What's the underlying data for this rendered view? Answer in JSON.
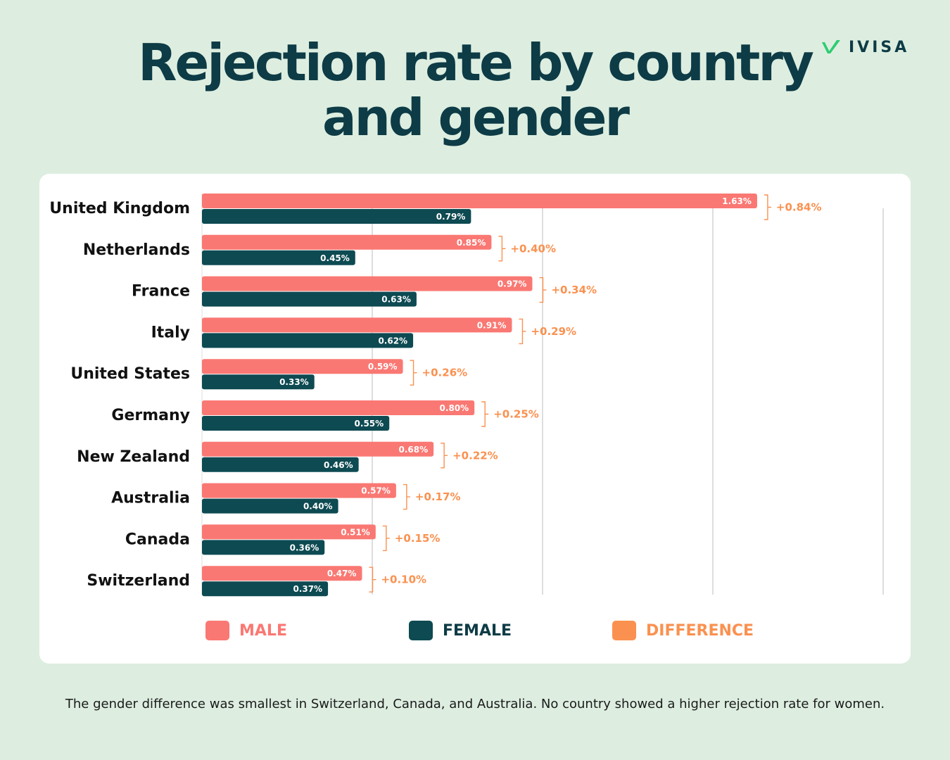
{
  "title": "Rejection rate by country and gender",
  "brand": {
    "name": "IVISA",
    "icon": "check-mark-icon",
    "icon_color": "#2ecc71"
  },
  "colors": {
    "male": "#fa7873",
    "female": "#0d4a52",
    "difference": "#fa9150",
    "grid": "#c8c8c8",
    "text": "#0d3b46"
  },
  "legend": [
    {
      "key": "male",
      "label": "MALE"
    },
    {
      "key": "female",
      "label": "FEMALE"
    },
    {
      "key": "difference",
      "label": "DIFFERENCE"
    }
  ],
  "chart_data": {
    "type": "bar",
    "orientation": "horizontal",
    "categories": [
      "United Kingdom",
      "Netherlands",
      "France",
      "Italy",
      "United States",
      "Germany",
      "New Zealand",
      "Australia",
      "Canada",
      "Switzerland"
    ],
    "series": [
      {
        "name": "MALE",
        "values": [
          1.63,
          0.85,
          0.97,
          0.91,
          0.59,
          0.8,
          0.68,
          0.57,
          0.51,
          0.47
        ],
        "labels": [
          "1.63%",
          "0.85%",
          "0.97%",
          "0.91%",
          "0.59%",
          "0.80%",
          "0.68%",
          "0.57%",
          "0.51%",
          "0.47%"
        ]
      },
      {
        "name": "FEMALE",
        "values": [
          0.79,
          0.45,
          0.63,
          0.62,
          0.33,
          0.55,
          0.46,
          0.4,
          0.36,
          0.37
        ],
        "labels": [
          "0.79%",
          "0.45%",
          "0.63%",
          "0.62%",
          "0.33%",
          "0.55%",
          "0.46%",
          "0.40%",
          "0.36%",
          "0.37%"
        ]
      },
      {
        "name": "DIFFERENCE",
        "values": [
          0.84,
          0.4,
          0.34,
          0.29,
          0.26,
          0.25,
          0.22,
          0.17,
          0.15,
          0.1
        ],
        "labels": [
          "+0.84%",
          "+0.40%",
          "+0.34%",
          "+0.29%",
          "+0.26%",
          "+0.25%",
          "+0.22%",
          "+0.17%",
          "+0.15%",
          "+0.10%"
        ]
      }
    ],
    "xlim": [
      0,
      2.0
    ],
    "grid": true,
    "legend_position": "bottom"
  },
  "footnote": "The gender difference was smallest in Switzerland, Canada, and Australia. No country showed a higher rejection rate for women."
}
